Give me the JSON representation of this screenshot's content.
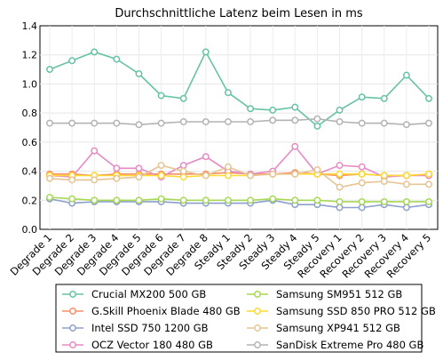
{
  "chart_data": {
    "type": "line",
    "title": "Durchschnittliche Latenz beim Lesen in ms",
    "xlabel": "",
    "ylabel": "",
    "ylim": [
      0,
      1.4
    ],
    "yticks": [
      "0.0",
      "0.2",
      "0.4",
      "0.6",
      "0.8",
      "1.0",
      "1.2",
      "1.4"
    ],
    "grid": true,
    "legend_position": "bottom",
    "categories": [
      "Degrade 1",
      "Degrade 2",
      "Degrade 3",
      "Degrade 4",
      "Degrade 5",
      "Degrade 6",
      "Degrade 7",
      "Degrade 8",
      "Steady 1",
      "Steady 2",
      "Steady 3",
      "Steady 4",
      "Steady 5",
      "Recovery 1",
      "Recovery 2",
      "Recovery 3",
      "Recovery 4",
      "Recovery 5"
    ],
    "series": [
      {
        "name": "Crucial MX200 500 GB",
        "color": "#66c2a5",
        "values": [
          1.1,
          1.16,
          1.22,
          1.17,
          1.07,
          0.92,
          0.9,
          1.22,
          0.94,
          0.83,
          0.82,
          0.84,
          0.71,
          0.82,
          0.91,
          0.9,
          1.06,
          0.9
        ]
      },
      {
        "name": "G.Skill Phoenix Blade 480 GB",
        "color": "#fc8d62",
        "values": [
          0.38,
          0.38,
          0.37,
          0.38,
          0.38,
          0.38,
          0.38,
          0.38,
          0.39,
          0.38,
          0.38,
          0.39,
          0.38,
          0.37,
          0.38,
          0.37,
          0.37,
          0.38
        ]
      },
      {
        "name": "Intel SSD 750 1200 GB",
        "color": "#8da0cb",
        "values": [
          0.21,
          0.18,
          0.19,
          0.19,
          0.19,
          0.19,
          0.18,
          0.18,
          0.18,
          0.18,
          0.2,
          0.17,
          0.17,
          0.15,
          0.15,
          0.17,
          0.15,
          0.17
        ]
      },
      {
        "name": "OCZ Vector 180 480 GB",
        "color": "#e78ac3",
        "values": [
          0.37,
          0.36,
          0.54,
          0.42,
          0.42,
          0.36,
          0.44,
          0.5,
          0.4,
          0.38,
          0.4,
          0.57,
          0.38,
          0.44,
          0.43,
          0.36,
          0.37,
          0.37
        ]
      },
      {
        "name": "Samsung SM951 512 GB",
        "color": "#a6d854",
        "values": [
          0.22,
          0.21,
          0.2,
          0.2,
          0.2,
          0.21,
          0.2,
          0.2,
          0.2,
          0.2,
          0.21,
          0.2,
          0.2,
          0.19,
          0.19,
          0.19,
          0.19,
          0.19
        ]
      },
      {
        "name": "Samsung SSD 850 PRO 512 GB",
        "color": "#ffd92f",
        "values": [
          0.37,
          0.37,
          0.37,
          0.37,
          0.37,
          0.37,
          0.36,
          0.37,
          0.37,
          0.37,
          0.38,
          0.38,
          0.38,
          0.38,
          0.38,
          0.37,
          0.37,
          0.38
        ]
      },
      {
        "name": "Samsung XP941 512 GB",
        "color": "#e5c494",
        "values": [
          0.35,
          0.34,
          0.34,
          0.35,
          0.36,
          0.44,
          0.4,
          0.37,
          0.43,
          0.37,
          0.38,
          0.38,
          0.41,
          0.29,
          0.32,
          0.33,
          0.31,
          0.31
        ]
      },
      {
        "name": "SanDisk Extreme Pro 480 GB",
        "color": "#b3b3b3",
        "values": [
          0.73,
          0.73,
          0.73,
          0.73,
          0.72,
          0.73,
          0.74,
          0.74,
          0.74,
          0.74,
          0.75,
          0.75,
          0.76,
          0.74,
          0.73,
          0.73,
          0.72,
          0.73
        ]
      }
    ]
  }
}
